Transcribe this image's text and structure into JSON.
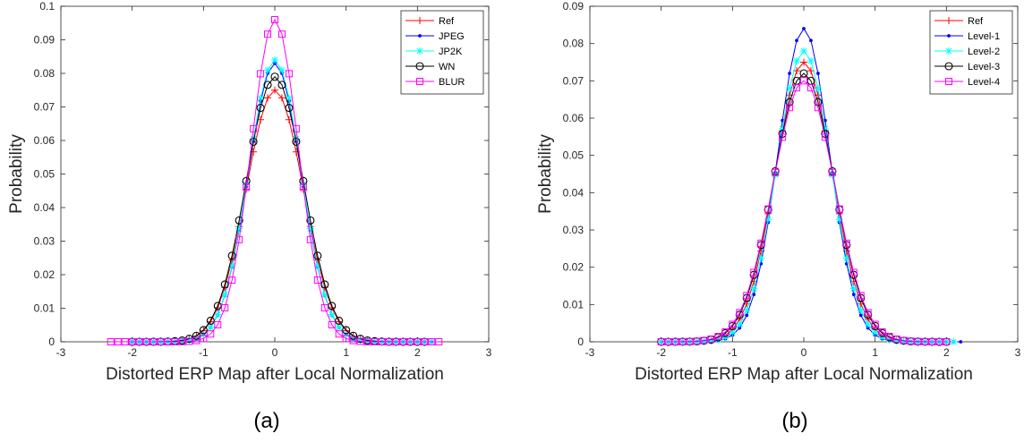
{
  "chart_data": [
    {
      "type": "line",
      "caption": "(a)",
      "xlabel": "Distorted ERP Map after Local Normalization",
      "ylabel": "Probability",
      "xlim": [
        -3,
        3
      ],
      "ylim": [
        0,
        0.1
      ],
      "xticks": [
        "-3",
        "-2",
        "-1",
        "0",
        "1",
        "2",
        "3"
      ],
      "yticks": [
        "0",
        "0.01",
        "0.02",
        "0.03",
        "0.04",
        "0.05",
        "0.06",
        "0.07",
        "0.08",
        "0.09",
        "0.1"
      ],
      "legend_position": "top-right",
      "grid": false,
      "series": [
        {
          "name": "Ref",
          "color": "#ff0000",
          "marker": "plus",
          "peak": 0.075,
          "sigma": 0.4,
          "xmin": -2.0,
          "xmax": 2.1
        },
        {
          "name": "JPEG",
          "color": "#0000ff",
          "marker": "dot",
          "peak": 0.083,
          "sigma": 0.37,
          "xmin": -2.0,
          "xmax": 2.2
        },
        {
          "name": "JP2K",
          "color": "#00ffff",
          "marker": "star",
          "peak": 0.084,
          "sigma": 0.37,
          "xmin": -2.0,
          "xmax": 2.2
        },
        {
          "name": "WN",
          "color": "#000000",
          "marker": "circle",
          "peak": 0.079,
          "sigma": 0.4,
          "xmin": -2.0,
          "xmax": 2.1
        },
        {
          "name": "BLUR",
          "color": "#ff00ff",
          "marker": "square",
          "peak": 0.096,
          "sigma": 0.33,
          "xmin": -2.3,
          "xmax": 2.3
        }
      ]
    },
    {
      "type": "line",
      "caption": "(b)",
      "xlabel": "Distorted ERP Map after Local Normalization",
      "ylabel": "Probability",
      "xlim": [
        -3,
        3
      ],
      "ylim": [
        0,
        0.09
      ],
      "xticks": [
        "-3",
        "-2",
        "-1",
        "0",
        "1",
        "2",
        "3"
      ],
      "yticks": [
        "0",
        "0.01",
        "0.02",
        "0.03",
        "0.04",
        "0.05",
        "0.06",
        "0.07",
        "0.08",
        "0.09"
      ],
      "legend_position": "top-right",
      "grid": false,
      "series": [
        {
          "name": "Ref",
          "color": "#ff0000",
          "marker": "plus",
          "peak": 0.075,
          "sigma": 0.4,
          "xmin": -2.0,
          "xmax": 2.0
        },
        {
          "name": "Level-1",
          "color": "#0000ff",
          "marker": "dot",
          "peak": 0.084,
          "sigma": 0.36,
          "xmin": -2.0,
          "xmax": 2.2
        },
        {
          "name": "Level-2",
          "color": "#00ffff",
          "marker": "star",
          "peak": 0.078,
          "sigma": 0.38,
          "xmin": -2.0,
          "xmax": 2.1
        },
        {
          "name": "Level-3",
          "color": "#000000",
          "marker": "circle",
          "peak": 0.072,
          "sigma": 0.42,
          "xmin": -2.0,
          "xmax": 2.0
        },
        {
          "name": "Level-4",
          "color": "#ff00ff",
          "marker": "square",
          "peak": 0.07,
          "sigma": 0.43,
          "xmin": -2.0,
          "xmax": 2.0
        }
      ]
    }
  ]
}
